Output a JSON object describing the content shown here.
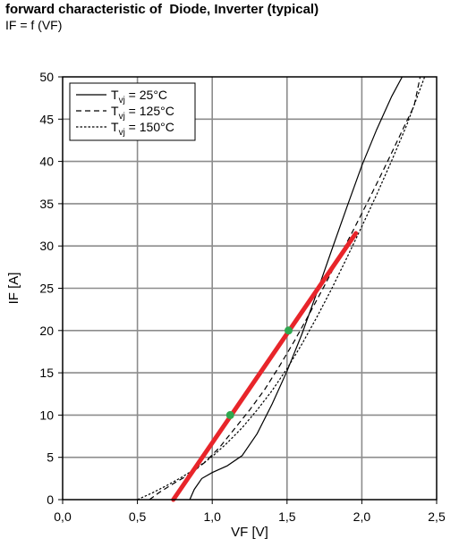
{
  "title": "forward characteristic of  Diode, Inverter (typical)",
  "subtitle": "IF = f (VF)",
  "chart_data": {
    "type": "line",
    "xlabel": "VF [V]",
    "ylabel": "IF [A]",
    "xlim": [
      0,
      2.5
    ],
    "ylim": [
      0,
      50
    ],
    "xticks": [
      0,
      0.5,
      1.0,
      1.5,
      2.0,
      2.5
    ],
    "xtick_labels": [
      "0,0",
      "0,5",
      "1,0",
      "1,5",
      "2,0",
      "2,5"
    ],
    "yticks": [
      0,
      5,
      10,
      15,
      20,
      25,
      30,
      35,
      40,
      45,
      50
    ],
    "ytick_labels": [
      "0",
      "5",
      "10",
      "15",
      "20",
      "25",
      "30",
      "35",
      "40",
      "45",
      "50"
    ],
    "grid": true,
    "legend_position": "top-left",
    "legend_entries": [
      "Tvj = 25°C",
      "Tvj = 125°C",
      "Tvj = 150°C"
    ],
    "series": [
      {
        "name": "Tvj = 25°C",
        "style": "solid",
        "color": "#000000",
        "x": [
          0.85,
          0.88,
          0.93,
          1.0,
          1.1,
          1.2,
          1.3,
          1.4,
          1.5,
          1.6,
          1.7,
          1.8,
          1.9,
          2.0,
          2.1,
          2.2,
          2.27,
          2.31
        ],
        "y": [
          0,
          1.2,
          2.5,
          3.2,
          4.0,
          5.2,
          7.8,
          11.3,
          15.2,
          19.6,
          24.5,
          29.6,
          34.6,
          39.5,
          43.8,
          47.7,
          50,
          51
        ]
      },
      {
        "name": "Tvj = 125°C",
        "style": "dashed",
        "color": "#000000",
        "x": [
          0.58,
          0.65,
          0.75,
          0.85,
          0.95,
          1.05,
          1.15,
          1.25,
          1.35,
          1.45,
          1.55,
          1.65,
          1.75,
          1.85,
          1.95,
          2.05,
          2.15,
          2.25,
          2.35,
          2.39
        ],
        "y": [
          0,
          0.9,
          2.0,
          3.0,
          4.4,
          6.2,
          8.4,
          10.6,
          13.0,
          15.8,
          18.8,
          22.0,
          25.3,
          28.7,
          32.1,
          35.6,
          39.2,
          42.9,
          46.6,
          50
        ]
      },
      {
        "name": "Tvj = 150°C",
        "style": "dotted",
        "color": "#000000",
        "x": [
          0.5,
          0.6,
          0.7,
          0.8,
          0.9,
          1.0,
          1.1,
          1.2,
          1.3,
          1.4,
          1.5,
          1.6,
          1.7,
          1.8,
          1.9,
          2.0,
          2.1,
          2.2,
          2.3,
          2.42
        ],
        "y": [
          0,
          0.8,
          1.7,
          2.7,
          3.8,
          5.1,
          6.7,
          8.5,
          10.6,
          12.9,
          15.5,
          18.4,
          21.6,
          25.0,
          28.6,
          32.3,
          36.1,
          40.1,
          44.3,
          50
        ]
      }
    ],
    "annotation_line": {
      "color": "#e8252a",
      "x": [
        0.74,
        1.96
      ],
      "y": [
        0,
        31.5
      ]
    },
    "annotation_points": {
      "color": "#2fa84f",
      "x": [
        1.12,
        1.51
      ],
      "y": [
        10,
        20
      ]
    }
  }
}
